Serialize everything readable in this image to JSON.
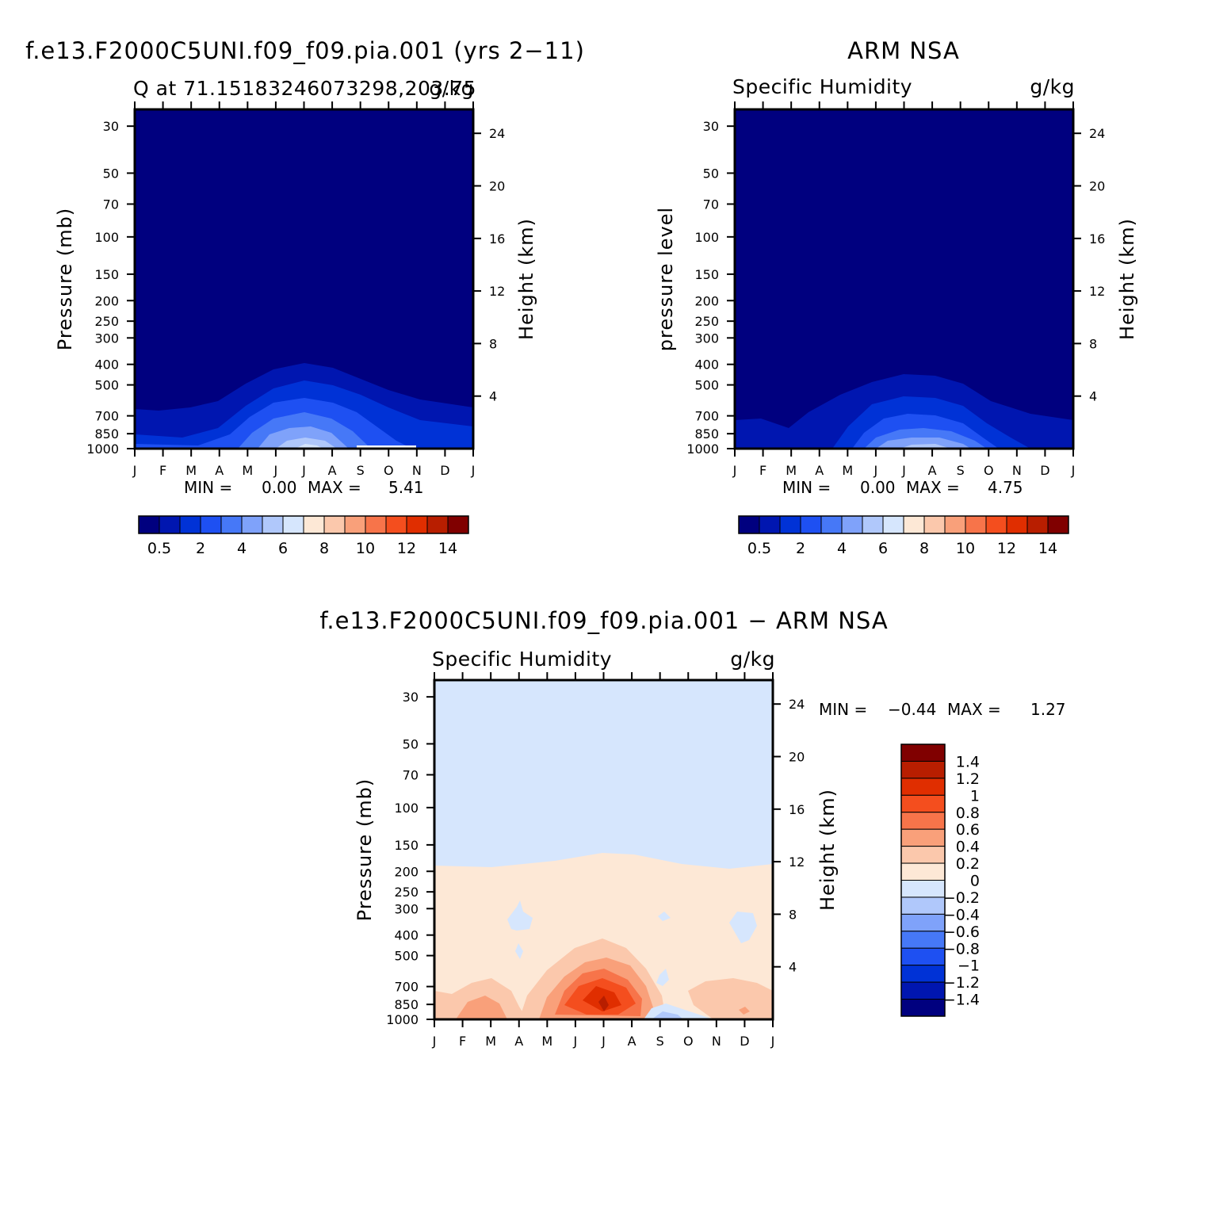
{
  "figure": {
    "panel_top_left": {
      "title": "f.e13.F2000C5UNI.f09_f09.pia.001 (yrs 2−11)",
      "subtitle_left": "Q at 71.15183246073298,203.75",
      "subtitle_right": "g/kg",
      "stats": {
        "min_label": "MIN =",
        "min_value": "0.00",
        "max_label": "MAX =",
        "max_value": "5.41"
      }
    },
    "panel_top_right": {
      "title": "ARM NSA",
      "subtitle_left": "Specific Humidity",
      "subtitle_right": "g/kg",
      "stats": {
        "min_label": "MIN =",
        "min_value": "0.00",
        "max_label": "MAX =",
        "max_value": "4.75"
      }
    },
    "panel_bottom": {
      "title": "f.e13.F2000C5UNI.f09_f09.pia.001 − ARM NSA",
      "subtitle_left": "Specific Humidity",
      "subtitle_right": "g/kg",
      "stats": {
        "min_label": "MIN =",
        "min_value": "−0.44",
        "max_label": "MAX =",
        "max_value": "1.27"
      }
    }
  },
  "colors": {
    "q_scale": [
      "#00007f",
      "#0016b0",
      "#0032d6",
      "#1e50f2",
      "#4678f7",
      "#7fa2fa",
      "#b0c8fb",
      "#d6e6fd",
      "#fde8d6",
      "#fbc8ac",
      "#f9a07a",
      "#f7744a",
      "#f44e1e",
      "#e02e00",
      "#b81e00",
      "#800000"
    ],
    "diff_scale": [
      "#00007f",
      "#0016b0",
      "#0032d6",
      "#1e50f2",
      "#4678f7",
      "#7fa2fa",
      "#b0c8fb",
      "#d6e6fd",
      "#fde8d6",
      "#fbc8ac",
      "#f9a07a",
      "#f7744a",
      "#f44e1e",
      "#e02e00",
      "#b81e00",
      "#800000"
    ]
  },
  "chart_data": [
    {
      "type": "heatmap",
      "title": "f.e13.F2000C5UNI.f09_f09.pia.001 (yrs 2−11)",
      "subtitle": "Q at 71.15183246073298,203.75",
      "units": "g/kg",
      "xlabel": "",
      "ylabel": "Pressure (mb)",
      "ylabel_right": "Height (km)",
      "x_ticks": [
        "J",
        "F",
        "M",
        "A",
        "M",
        "J",
        "J",
        "A",
        "S",
        "O",
        "N",
        "D",
        "J"
      ],
      "y_ticks": [
        30,
        50,
        70,
        100,
        150,
        200,
        250,
        300,
        400,
        500,
        700,
        850,
        1000
      ],
      "y_ticks_right": [
        4,
        8,
        12,
        16,
        20,
        24
      ],
      "ylim": [
        1000,
        25
      ],
      "log_y": true,
      "colorbar_levels": [
        0.5,
        1,
        2,
        3,
        4,
        5,
        6,
        7,
        8,
        9,
        10,
        11,
        12,
        13,
        14
      ],
      "colorbar_labels": [
        "0.5",
        "2",
        "4",
        "6",
        "8",
        "10",
        "12",
        "14"
      ],
      "min": 0.0,
      "max": 5.41
    },
    {
      "type": "heatmap",
      "title": "ARM NSA",
      "subtitle": "Specific Humidity",
      "units": "g/kg",
      "xlabel": "",
      "ylabel": "pressure level",
      "ylabel_right": "Height (km)",
      "x_ticks": [
        "J",
        "F",
        "M",
        "A",
        "M",
        "J",
        "J",
        "A",
        "S",
        "O",
        "N",
        "D",
        "J"
      ],
      "y_ticks": [
        30,
        50,
        70,
        100,
        150,
        200,
        250,
        300,
        400,
        500,
        700,
        850,
        1000
      ],
      "y_ticks_right": [
        4,
        8,
        12,
        16,
        20,
        24
      ],
      "ylim": [
        1000,
        25
      ],
      "log_y": true,
      "colorbar_levels": [
        0.5,
        1,
        2,
        3,
        4,
        5,
        6,
        7,
        8,
        9,
        10,
        11,
        12,
        13,
        14
      ],
      "colorbar_labels": [
        "0.5",
        "2",
        "4",
        "6",
        "8",
        "10",
        "12",
        "14"
      ],
      "min": 0.0,
      "max": 4.75
    },
    {
      "type": "heatmap",
      "title": "f.e13.F2000C5UNI.f09_f09.pia.001 − ARM NSA",
      "subtitle": "Specific Humidity",
      "units": "g/kg",
      "xlabel": "",
      "ylabel": "Pressure (mb)",
      "ylabel_right": "Height (km)",
      "x_ticks": [
        "J",
        "F",
        "M",
        "A",
        "M",
        "J",
        "J",
        "A",
        "S",
        "O",
        "N",
        "D",
        "J"
      ],
      "y_ticks": [
        30,
        50,
        70,
        100,
        150,
        200,
        250,
        300,
        400,
        500,
        700,
        850,
        1000
      ],
      "y_ticks_right": [
        4,
        8,
        12,
        16,
        20,
        24
      ],
      "ylim": [
        1000,
        25
      ],
      "log_y": true,
      "colorbar_labels": [
        "1.4",
        "1.2",
        "1",
        "0.8",
        "0.6",
        "0.4",
        "0.2",
        "0",
        "−0.2",
        "−0.4",
        "−0.6",
        "−0.8",
        "−1",
        "−1.2",
        "−1.4"
      ],
      "min": -0.44,
      "max": 1.27
    }
  ]
}
